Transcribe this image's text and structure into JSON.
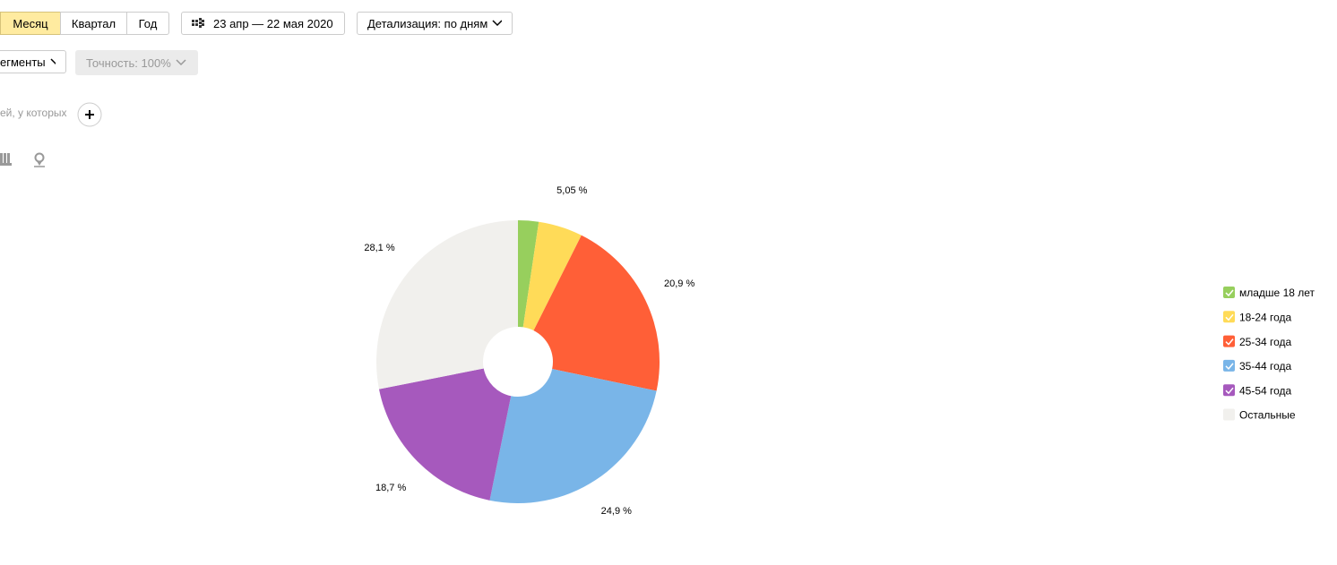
{
  "toolbar": {
    "periods": [
      "Месяц",
      "Квартал",
      "Год"
    ],
    "date_range": "23 апр — 22 мая 2020",
    "detail": "Детализация: по дням",
    "segments": "егменты",
    "accuracy": "Точность: 100%",
    "filter_text": "ей, у которых"
  },
  "chart_data": {
    "type": "pie",
    "categories": [
      "младше 18 лет",
      "18-24 года",
      "25-34 года",
      "35-44 года",
      "45-54 года",
      "Остальные"
    ],
    "values": [
      2.35,
      5.05,
      20.9,
      24.9,
      18.7,
      28.1
    ],
    "value_labels": [
      null,
      "5,05 %",
      "20,9 %",
      "24,9 %",
      "18,7 %",
      "28,1 %"
    ],
    "colors": [
      "#97cf5d",
      "#ffdb58",
      "#ff5f37",
      "#79b5e8",
      "#a659bd",
      "#f1f0ed"
    ],
    "legend_checked": [
      true,
      true,
      true,
      true,
      true,
      false
    ],
    "legend": "right"
  }
}
